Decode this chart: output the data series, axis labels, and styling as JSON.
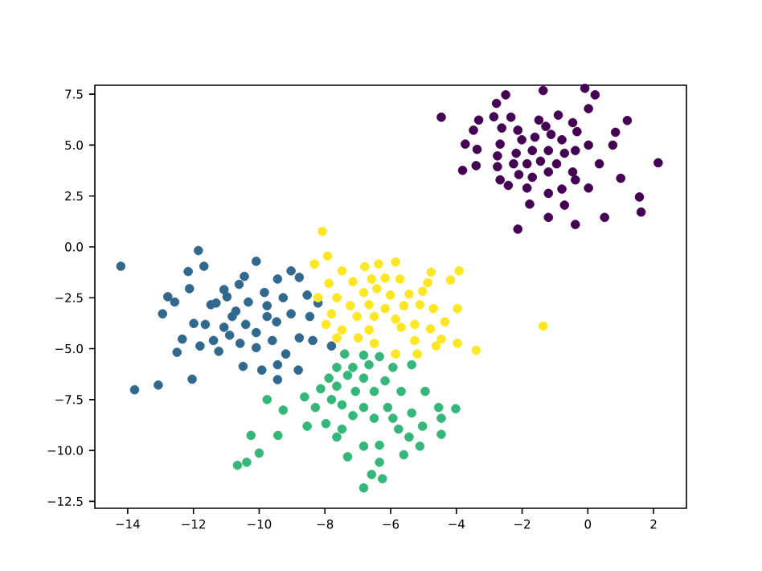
{
  "chart_data": {
    "type": "scatter",
    "marker": "circle",
    "grid": false,
    "xlim": [
      -15.0,
      3.0
    ],
    "ylim": [
      -12.84,
      7.94
    ],
    "xticks": [
      {
        "value": -14,
        "label": "−14"
      },
      {
        "value": -12,
        "label": "−12"
      },
      {
        "value": -10,
        "label": "−10"
      },
      {
        "value": -8,
        "label": "−8"
      },
      {
        "value": -6,
        "label": "−6"
      },
      {
        "value": -4,
        "label": "−4"
      },
      {
        "value": -2,
        "label": "−2"
      },
      0,
      2
    ],
    "yticks": [
      {
        "value": -12.5,
        "label": "−12.5"
      },
      {
        "value": -10,
        "label": "−10.0"
      },
      {
        "value": -7.5,
        "label": "−7.5"
      },
      {
        "value": -5,
        "label": "−5.0"
      },
      {
        "value": -2.5,
        "label": "−2.5"
      },
      {
        "value": 0,
        "label": "0.0"
      },
      {
        "value": 2.5,
        "label": "2.5"
      },
      {
        "value": 5,
        "label": "5.0"
      },
      {
        "value": 7.5,
        "label": "7.5"
      }
    ],
    "series": [
      {
        "color": "#440154",
        "x": [
          -4.46,
          -1.36,
          -0.09,
          0.22,
          -2.5,
          -2.78,
          0.02,
          -2.86,
          -2.34,
          -0.9,
          -3.32,
          -1.49,
          -0.46,
          1.2,
          -3.48,
          -2.62,
          -2.13,
          -1.28,
          -0.33,
          0.84,
          -3.73,
          -3.37,
          -2.67,
          -2.01,
          -1.61,
          -1.12,
          -0.79,
          0.02,
          0.76,
          -2.75,
          -2.18,
          -1.69,
          -1.2,
          -0.71,
          -0.38,
          -3.81,
          -3.4,
          -2.75,
          -2.26,
          -1.85,
          -1.44,
          -0.95,
          0.35,
          2.14,
          -2.67,
          -2.1,
          -1.69,
          -1.2,
          -0.46,
          1.0,
          -2.42,
          -1.85,
          -1.2,
          -0.79,
          -0.38,
          0.02,
          -1.77,
          -1.2,
          -0.71,
          -0.38,
          0.51,
          1.57,
          1.62,
          -2.13
        ],
        "values": [
          6.37,
          7.68,
          7.79,
          7.47,
          7.47,
          7.05,
          6.79,
          6.39,
          6.37,
          6.47,
          6.23,
          6.23,
          6.1,
          6.21,
          5.73,
          5.84,
          5.73,
          5.92,
          5.66,
          5.63,
          5.05,
          4.79,
          5.05,
          5.26,
          5.39,
          5.52,
          5.26,
          5.0,
          5.0,
          4.47,
          4.6,
          4.73,
          4.73,
          4.6,
          4.73,
          3.76,
          3.99,
          3.94,
          4.08,
          4.08,
          4.21,
          4.08,
          4.08,
          4.13,
          3.29,
          3.55,
          3.42,
          3.68,
          3.68,
          3.37,
          3.02,
          2.89,
          2.63,
          2.84,
          3.29,
          2.89,
          2.1,
          1.45,
          2.05,
          1.1,
          1.45,
          2.45,
          1.71,
          0.87
        ]
      },
      {
        "color": "#31688e",
        "x": [
          -14.21,
          -11.85,
          -12.16,
          -11.68,
          -10.09,
          -12.78,
          -12.57,
          -12.94,
          -12.12,
          -11.47,
          -11.07,
          -10.61,
          -10.45,
          -10.98,
          -10.71,
          -10.33,
          -9.84,
          -9.44,
          -9.03,
          -8.78,
          -9.27,
          -8.54,
          -9.76,
          -11.99,
          -11.64,
          -11.07,
          -10.41,
          -10.09,
          -9.47,
          -9.03,
          -8.46,
          -8.21,
          -12.34,
          -11.39,
          -10.9,
          -10.58,
          -11.8,
          -11.23,
          -10.09,
          -9.6,
          -8.78,
          -8.37,
          -7.8,
          -12.5,
          -9.19,
          -9.44,
          -10.49,
          -9.92,
          -8.81,
          -12.04,
          -9.44,
          -13.07,
          -13.79,
          -11.31,
          -9.76,
          -10.82
        ],
        "values": [
          -0.95,
          -0.18,
          -1.21,
          -0.95,
          -0.71,
          -2.45,
          -2.71,
          -3.29,
          -2.05,
          -2.84,
          -2.1,
          -1.84,
          -1.45,
          -2.45,
          -3.16,
          -2.71,
          -2.24,
          -1.58,
          -1.18,
          -1.5,
          -2.5,
          -2.37,
          -3.42,
          -3.76,
          -3.81,
          -3.95,
          -3.81,
          -4.21,
          -3.68,
          -3.29,
          -3.42,
          -2.76,
          -4.53,
          -4.6,
          -4.34,
          -4.74,
          -4.87,
          -5.13,
          -4.95,
          -4.6,
          -4.47,
          -4.6,
          -4.87,
          -5.18,
          -5.26,
          -5.79,
          -5.87,
          -6.05,
          -6.05,
          -6.5,
          -6.52,
          -6.79,
          -7.02,
          -2.76,
          -2.89,
          -3.42
        ]
      },
      {
        "color": "#35b779",
        "x": [
          -7.4,
          -6.82,
          -6.34,
          -7.64,
          -7.15,
          -6.66,
          -5.93,
          -5.36,
          -7.88,
          -7.31,
          -6.82,
          -6.17,
          -8.13,
          -7.64,
          -7.07,
          -6.5,
          -5.68,
          -4.95,
          -9.76,
          -8.62,
          -7.8,
          -7.48,
          -9.27,
          -8.29,
          -6.82,
          -6.09,
          -5.36,
          -4.54,
          -4.02,
          -8.54,
          -7.97,
          -7.48,
          -7.15,
          -6.5,
          -5.93,
          -5.76,
          -5.03,
          -4.46,
          -9.43,
          -10.25,
          -7.64,
          -6.82,
          -6.34,
          -5.44,
          -4.46,
          -5.11,
          -10.0,
          -10.66,
          -10.38,
          -7.31,
          -6.34,
          -5.6,
          -6.58,
          -6.25,
          -6.82
        ],
        "values": [
          -5.26,
          -5.32,
          -5.39,
          -5.92,
          -5.92,
          -5.79,
          -5.92,
          -5.79,
          -6.45,
          -6.31,
          -6.45,
          -6.58,
          -6.97,
          -6.84,
          -7.1,
          -7.1,
          -7.1,
          -7.1,
          -7.5,
          -7.37,
          -7.5,
          -7.76,
          -8.02,
          -7.89,
          -7.89,
          -7.89,
          -8.16,
          -7.89,
          -7.95,
          -8.81,
          -8.68,
          -8.95,
          -8.29,
          -8.42,
          -8.42,
          -8.95,
          -8.81,
          -8.42,
          -9.26,
          -9.26,
          -9.34,
          -9.79,
          -9.74,
          -9.34,
          -9.21,
          -9.79,
          -10.13,
          -10.73,
          -10.58,
          -10.31,
          -10.58,
          -10.21,
          -11.18,
          -11.39,
          -11.84
        ]
      },
      {
        "color": "#fde725",
        "x": [
          -8.08,
          -8.32,
          -7.92,
          -7.48,
          -6.79,
          -6.37,
          -5.85,
          -7.15,
          -6.58,
          -6.17,
          -5.72,
          -4.77,
          -4.87,
          -3.92,
          -4.18,
          -7.88,
          -8.21,
          -7.64,
          -6.82,
          -6.42,
          -6.01,
          -5.44,
          -5.03,
          -7.23,
          -6.66,
          -6.17,
          -5.6,
          -5.11,
          -4.7,
          -3.97,
          -7.8,
          -7.02,
          -6.5,
          -5.85,
          -5.27,
          -4.35,
          -7.97,
          -7.48,
          -6.66,
          -5.68,
          -4.79,
          -7.64,
          -6.99,
          -6.5,
          -5.27,
          -4.46,
          -3.97,
          -3.4,
          -4.62,
          -5.19,
          -5.85,
          -1.36
        ],
        "values": [
          0.76,
          -0.84,
          -0.45,
          -1.18,
          -0.97,
          -0.84,
          -0.74,
          -1.71,
          -1.58,
          -1.53,
          -1.58,
          -1.24,
          -1.76,
          -1.18,
          -1.63,
          -1.79,
          -2.5,
          -2.5,
          -2.24,
          -2.05,
          -2.37,
          -2.32,
          -2.18,
          -2.89,
          -2.84,
          -3.03,
          -2.89,
          -2.84,
          -3.03,
          -3.03,
          -3.29,
          -3.42,
          -3.42,
          -3.55,
          -3.81,
          -3.68,
          -3.81,
          -4.08,
          -4.08,
          -3.95,
          -4.03,
          -4.47,
          -4.47,
          -4.74,
          -4.6,
          -4.53,
          -4.74,
          -5.08,
          -4.87,
          -5.26,
          -5.26,
          -3.89
        ]
      }
    ]
  }
}
